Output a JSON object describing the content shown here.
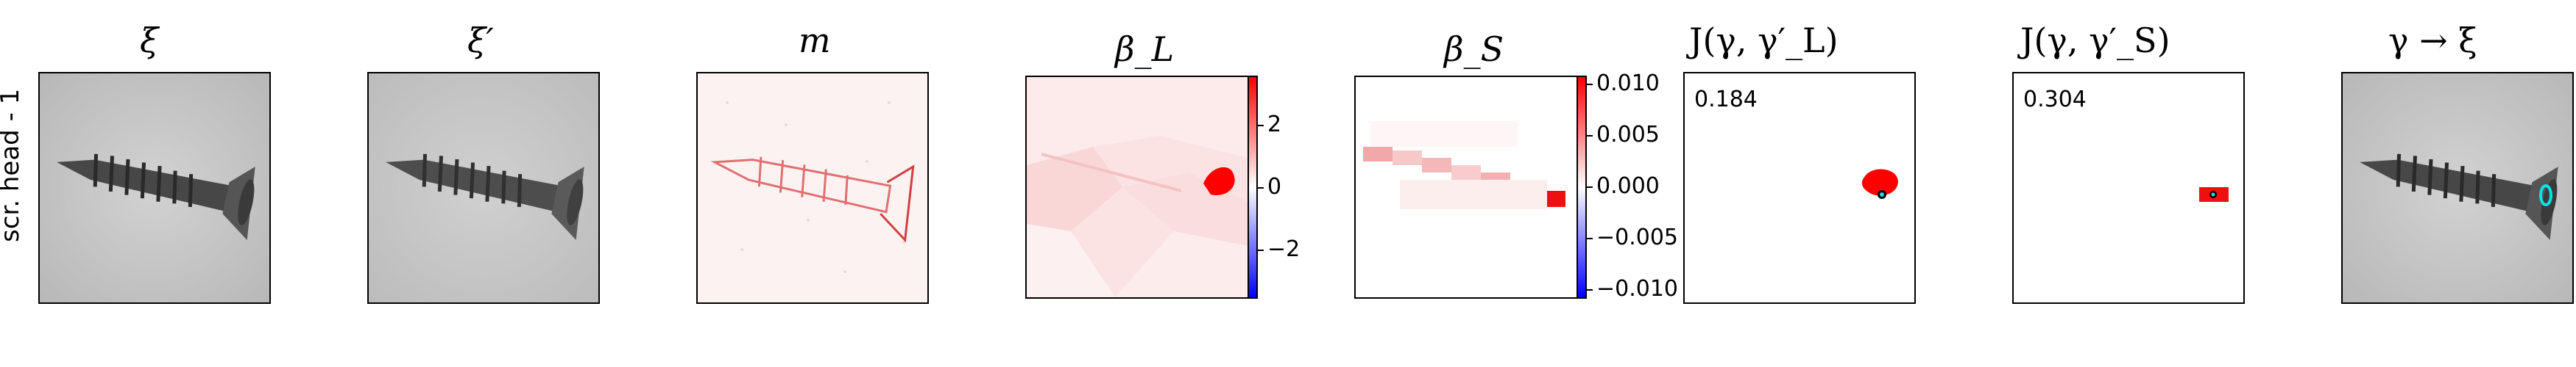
{
  "row_label": "scr. head - 1",
  "panels": [
    {
      "title": "ξ"
    },
    {
      "title": "ξ′"
    },
    {
      "title": "m"
    },
    {
      "title": "β_L",
      "colorbar_ticks": [
        "2",
        "0",
        "−2"
      ]
    },
    {
      "title": "β_S",
      "colorbar_ticks": [
        "0.010",
        "0.005",
        "0.000",
        "−0.005",
        "−0.010"
      ]
    },
    {
      "title": "J(γ, γ′_L)",
      "score": "0.184"
    },
    {
      "title": "J(γ, γ′_S)",
      "score": "0.304"
    },
    {
      "title": "γ → ξ"
    }
  ],
  "colors": {
    "positive": "#ff0000",
    "negative": "#0000ff",
    "marker": "#00e5e5"
  }
}
